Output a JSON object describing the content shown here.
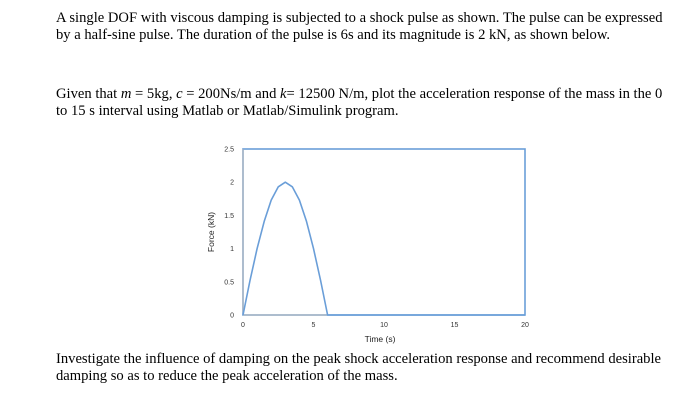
{
  "problem": {
    "intro": "A single DOF with viscous damping is subjected to a shock pulse as shown.  The pulse can be expressed by a half-sine pulse. The duration of the pulse is 6s and its magnitude is 2 kN, as shown below.",
    "given_prefix": "Given that ",
    "m_sym": "m",
    "m_val": " = 5kg, ",
    "c_sym": "c",
    "c_val": " = 200Ns/m and ",
    "k_sym": "k",
    "k_val": "= 12500 N/m, plot the acceleration response of the mass in the 0 to 15 s interval using Matlab or Matlab/Simulink program.",
    "closing": "Investigate the influence of damping on the peak shock acceleration response and recommend desirable damping so as to reduce the peak acceleration of the mass."
  },
  "chart_data": {
    "type": "line",
    "title": "",
    "xlabel": "Time (s)",
    "ylabel": "Force (kN)",
    "xlim": [
      0,
      20
    ],
    "ylim": [
      0,
      2.5
    ],
    "x_ticks": [
      "0",
      "5",
      "10",
      "15",
      "20"
    ],
    "y_ticks": [
      "0",
      "0.5",
      "1",
      "1.5",
      "2",
      "2.5"
    ],
    "grid": false,
    "series": [
      {
        "color": "#6a9ed8",
        "x": [
          0,
          0.5,
          1,
          1.5,
          2,
          2.5,
          3,
          3.5,
          4,
          4.5,
          5,
          5.5,
          6,
          20
        ],
        "values": [
          0,
          0.52,
          1.0,
          1.41,
          1.73,
          1.93,
          2.0,
          1.93,
          1.73,
          1.41,
          1.0,
          0.52,
          0,
          0
        ]
      }
    ],
    "frame_color": "#6a9ed8",
    "axis_color": "#b5b5b5"
  }
}
